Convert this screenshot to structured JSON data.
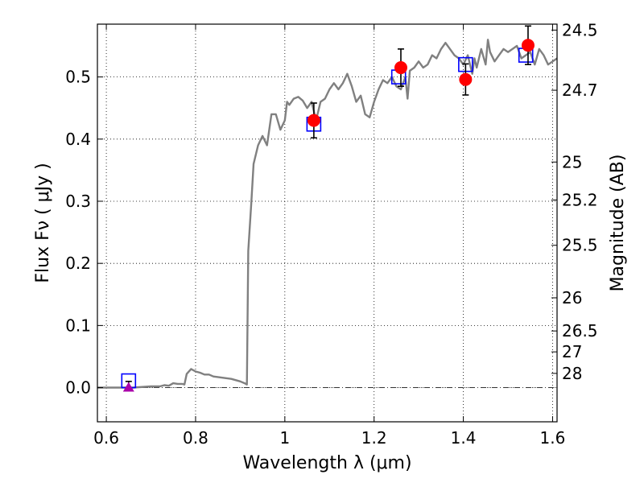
{
  "chart_data": {
    "type": "scatter",
    "title": "",
    "xlabel": "Wavelength  λ (μm)",
    "ylabel": "Flux  Fν ( μJy )",
    "y2label": "Magnitude (AB)",
    "xlim": [
      0.58,
      1.61
    ],
    "ylim": [
      -0.055,
      0.585
    ],
    "grid": true,
    "x_ticks": [
      {
        "value": 0.6,
        "label": "0.6"
      },
      {
        "value": 0.8,
        "label": "0.8"
      },
      {
        "value": 1.0,
        "label": "1"
      },
      {
        "value": 1.2,
        "label": "1.2"
      },
      {
        "value": 1.4,
        "label": "1.4"
      },
      {
        "value": 1.6,
        "label": "1.6"
      }
    ],
    "y_ticks": [
      {
        "value": 0.0,
        "label": "0.0"
      },
      {
        "value": 0.1,
        "label": "0.1"
      },
      {
        "value": 0.2,
        "label": "0.2"
      },
      {
        "value": 0.3,
        "label": "0.3"
      },
      {
        "value": 0.4,
        "label": "0.4"
      },
      {
        "value": 0.5,
        "label": "0.5"
      }
    ],
    "mag_ticks": [
      {
        "mag": 24.5,
        "label": "24.5"
      },
      {
        "mag": 24.7,
        "label": "24.7"
      },
      {
        "mag": 25.0,
        "label": "25"
      },
      {
        "mag": 25.2,
        "label": "25.2"
      },
      {
        "mag": 25.5,
        "label": "25.5"
      },
      {
        "mag": 26.0,
        "label": "26"
      },
      {
        "mag": 26.5,
        "label": "26.5"
      },
      {
        "mag": 27.0,
        "label": "27"
      },
      {
        "mag": 28.0,
        "label": "28"
      }
    ],
    "zero_line": {
      "value": 0.0,
      "color": "#333333",
      "style": "dash-dot"
    },
    "series": [
      {
        "kind": "line",
        "color": "#808080",
        "points": [
          [
            0.58,
            0.0
          ],
          [
            0.62,
            0.0
          ],
          [
            0.66,
            0.0
          ],
          [
            0.7,
            0.002
          ],
          [
            0.72,
            0.002
          ],
          [
            0.73,
            0.004
          ],
          [
            0.74,
            0.003
          ],
          [
            0.75,
            0.007
          ],
          [
            0.76,
            0.006
          ],
          [
            0.77,
            0.006
          ],
          [
            0.775,
            0.005
          ],
          [
            0.78,
            0.022
          ],
          [
            0.79,
            0.03
          ],
          [
            0.8,
            0.026
          ],
          [
            0.81,
            0.024
          ],
          [
            0.82,
            0.021
          ],
          [
            0.83,
            0.021
          ],
          [
            0.84,
            0.018
          ],
          [
            0.86,
            0.016
          ],
          [
            0.88,
            0.014
          ],
          [
            0.9,
            0.01
          ],
          [
            0.91,
            0.007
          ],
          [
            0.915,
            0.005
          ],
          [
            0.918,
            0.22
          ],
          [
            0.925,
            0.3
          ],
          [
            0.93,
            0.36
          ],
          [
            0.94,
            0.39
          ],
          [
            0.95,
            0.405
          ],
          [
            0.96,
            0.39
          ],
          [
            0.97,
            0.44
          ],
          [
            0.98,
            0.44
          ],
          [
            0.99,
            0.415
          ],
          [
            1.0,
            0.43
          ],
          [
            1.005,
            0.46
          ],
          [
            1.01,
            0.455
          ],
          [
            1.02,
            0.465
          ],
          [
            1.03,
            0.468
          ],
          [
            1.04,
            0.462
          ],
          [
            1.05,
            0.45
          ],
          [
            1.06,
            0.46
          ],
          [
            1.07,
            0.43
          ],
          [
            1.08,
            0.46
          ],
          [
            1.09,
            0.465
          ],
          [
            1.1,
            0.48
          ],
          [
            1.11,
            0.49
          ],
          [
            1.12,
            0.48
          ],
          [
            1.13,
            0.49
          ],
          [
            1.14,
            0.505
          ],
          [
            1.15,
            0.485
          ],
          [
            1.16,
            0.46
          ],
          [
            1.17,
            0.47
          ],
          [
            1.18,
            0.44
          ],
          [
            1.19,
            0.435
          ],
          [
            1.2,
            0.46
          ],
          [
            1.21,
            0.48
          ],
          [
            1.22,
            0.495
          ],
          [
            1.23,
            0.49
          ],
          [
            1.24,
            0.5
          ],
          [
            1.25,
            0.485
          ],
          [
            1.26,
            0.48
          ],
          [
            1.27,
            0.5
          ],
          [
            1.275,
            0.465
          ],
          [
            1.28,
            0.51
          ],
          [
            1.29,
            0.515
          ],
          [
            1.3,
            0.525
          ],
          [
            1.31,
            0.515
          ],
          [
            1.32,
            0.52
          ],
          [
            1.33,
            0.535
          ],
          [
            1.34,
            0.53
          ],
          [
            1.35,
            0.545
          ],
          [
            1.36,
            0.555
          ],
          [
            1.37,
            0.545
          ],
          [
            1.38,
            0.535
          ],
          [
            1.39,
            0.53
          ],
          [
            1.4,
            0.52
          ],
          [
            1.41,
            0.535
          ],
          [
            1.42,
            0.505
          ],
          [
            1.425,
            0.53
          ],
          [
            1.43,
            0.515
          ],
          [
            1.44,
            0.545
          ],
          [
            1.45,
            0.52
          ],
          [
            1.455,
            0.56
          ],
          [
            1.46,
            0.54
          ],
          [
            1.47,
            0.525
          ],
          [
            1.48,
            0.535
          ],
          [
            1.49,
            0.545
          ],
          [
            1.5,
            0.54
          ],
          [
            1.51,
            0.545
          ],
          [
            1.52,
            0.55
          ],
          [
            1.53,
            0.53
          ],
          [
            1.54,
            0.535
          ],
          [
            1.55,
            0.54
          ],
          [
            1.56,
            0.52
          ],
          [
            1.57,
            0.545
          ],
          [
            1.58,
            0.535
          ],
          [
            1.59,
            0.52
          ],
          [
            1.6,
            0.525
          ],
          [
            1.61,
            0.53
          ]
        ]
      },
      {
        "kind": "model_boxes",
        "color": "#0000ff",
        "points": [
          [
            0.65,
            0.011
          ],
          [
            1.065,
            0.424
          ],
          [
            1.255,
            0.5
          ],
          [
            1.405,
            0.52
          ],
          [
            1.54,
            0.535
          ]
        ]
      },
      {
        "kind": "observed",
        "color": "#ff0000",
        "points": [
          {
            "x": 1.065,
            "y": 0.43,
            "err": 0.028
          },
          {
            "x": 1.26,
            "y": 0.515,
            "err": 0.03
          },
          {
            "x": 1.405,
            "y": 0.496,
            "err": 0.025
          },
          {
            "x": 1.545,
            "y": 0.551,
            "err": 0.031
          }
        ]
      },
      {
        "kind": "upper_limit",
        "color": "#aa00aa",
        "points": [
          {
            "x": 0.65,
            "y": 0.0,
            "err": 0.01
          }
        ]
      }
    ]
  }
}
